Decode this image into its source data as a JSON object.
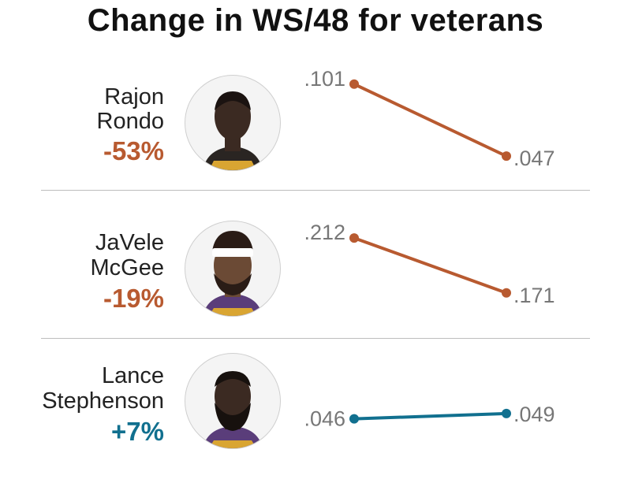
{
  "chart_data": {
    "type": "line",
    "title": "Change in WS/48 for veterans",
    "panels": [
      {
        "name_line1": "Rajon",
        "name_line2": "Rondo",
        "change": "-53%",
        "start": 0.101,
        "end": 0.047,
        "start_label": ".101",
        "end_label": ".047",
        "color": "#b85a30",
        "photo_icon": "player-headshot-rondo"
      },
      {
        "name_line1": "JaVele",
        "name_line2": "McGee",
        "change": "-19%",
        "start": 0.212,
        "end": 0.171,
        "start_label": ".212",
        "end_label": ".171",
        "color": "#b85a30",
        "photo_icon": "player-headshot-mcgee"
      },
      {
        "name_line1": "Lance",
        "name_line2": "Stephenson",
        "change": "+7%",
        "start": 0.046,
        "end": 0.049,
        "start_label": ".046",
        "end_label": ".049",
        "color": "#11708f",
        "photo_icon": "player-headshot-stephenson"
      }
    ]
  }
}
